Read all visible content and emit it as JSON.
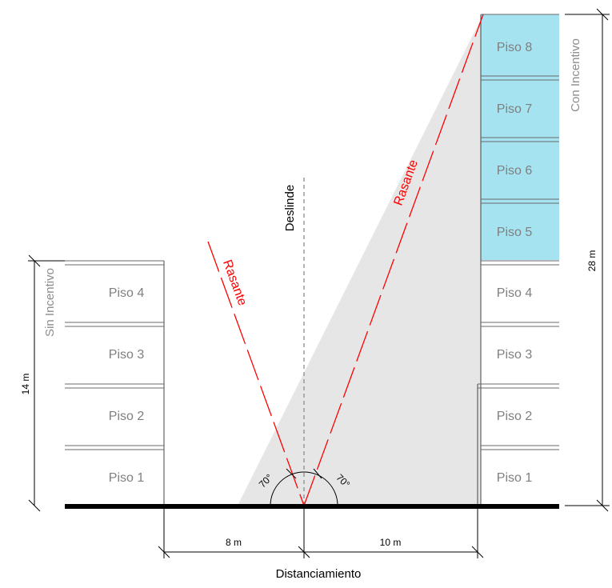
{
  "colors": {
    "rasante": "#ff0000",
    "shade": "#e6e6e6",
    "incentive_floor": "#a6e3f0",
    "floor_line": "#6a6a6a",
    "ground": "#000000",
    "label_gray": "#8c8c8c"
  },
  "left_building": {
    "label": "Sin Incentivo",
    "height_label": "14 m",
    "floors": [
      "Piso 1",
      "Piso 2",
      "Piso 3",
      "Piso 4"
    ]
  },
  "right_building": {
    "label": "Con Incentivo",
    "height_label": "28 m",
    "floors": [
      "Piso 1",
      "Piso 2",
      "Piso 3",
      "Piso 4",
      "Piso 5",
      "Piso 6",
      "Piso 7",
      "Piso 8"
    ],
    "incentive_floors": [
      "Piso 5",
      "Piso 6",
      "Piso 7",
      "Piso 8"
    ]
  },
  "deslinde_label": "Deslinde",
  "rasante_label": "Rasante",
  "angles": {
    "left": "70°",
    "right": "70°"
  },
  "distances": {
    "left": "8 m",
    "right": "10 m"
  },
  "bottom_label": "Distanciamiento"
}
